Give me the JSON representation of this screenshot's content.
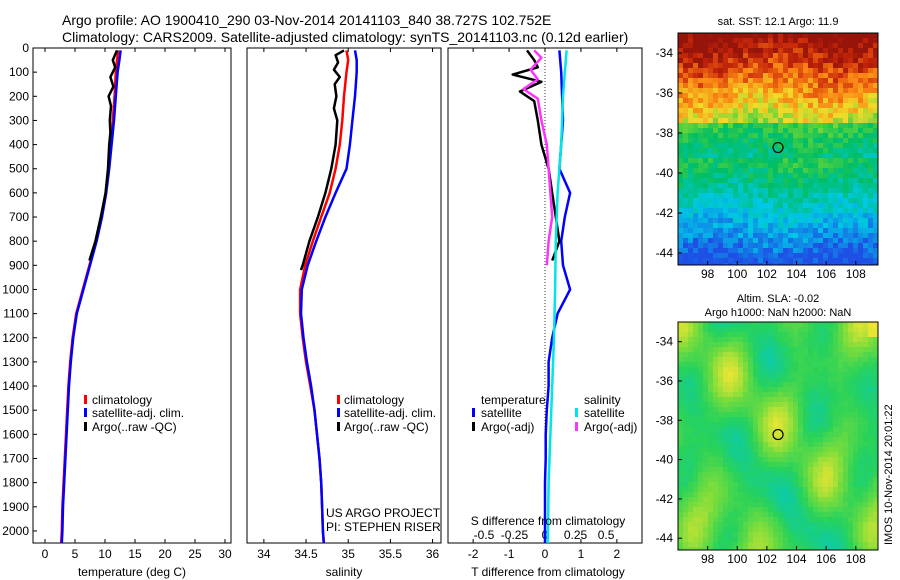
{
  "header": {
    "line1": "Argo profile: AO 1900410_290 03-Nov-2014 20141103_840 38.727S 102.752E",
    "line2": "Climatology: CARS2009. Satellite-adjusted climatology: synTS_20141103.nc (0.12d earlier)"
  },
  "colors": {
    "climatology": "#ff0000",
    "satellite": "#0000ff",
    "argo": "#000000",
    "salinity_satellite": "#00e5e5",
    "salinity_argo": "#ff33ff"
  },
  "chart_data": [
    {
      "type": "line",
      "panel": "temperature",
      "xlabel": "temperature (deg C)",
      "ylabel": "",
      "xlim": [
        -2,
        31
      ],
      "ylim": [
        2050,
        0
      ],
      "xticks": [
        0,
        5,
        10,
        15,
        20,
        25,
        30
      ],
      "yticks": [
        0,
        100,
        200,
        300,
        400,
        500,
        600,
        700,
        800,
        900,
        1000,
        1100,
        1200,
        1300,
        1400,
        1500,
        1600,
        1700,
        1800,
        1900,
        2000
      ],
      "legend": [
        "climatology",
        "satellite-adj. clim.",
        "Argo(..raw -QC)"
      ],
      "series": [
        {
          "name": "climatology",
          "color": "#ff0000",
          "values": [
            [
              12.2,
              10
            ],
            [
              12.0,
              50
            ],
            [
              11.8,
              100
            ],
            [
              11.6,
              200
            ],
            [
              11.3,
              300
            ],
            [
              11.0,
              400
            ],
            [
              10.6,
              500
            ],
            [
              10.1,
              600
            ],
            [
              9.4,
              700
            ],
            [
              8.5,
              800
            ],
            [
              7.4,
              900
            ],
            [
              6.3,
              1000
            ],
            [
              5.2,
              1100
            ],
            [
              4.6,
              1200
            ],
            [
              4.2,
              1300
            ],
            [
              3.9,
              1400
            ],
            [
              3.7,
              1500
            ],
            [
              3.5,
              1600
            ],
            [
              3.3,
              1700
            ],
            [
              3.1,
              1800
            ],
            [
              2.9,
              1900
            ],
            [
              2.8,
              2000
            ],
            [
              2.7,
              2050
            ]
          ]
        },
        {
          "name": "satellite-adj. clim.",
          "color": "#0000ff",
          "values": [
            [
              12.6,
              10
            ],
            [
              12.4,
              50
            ],
            [
              12.1,
              100
            ],
            [
              11.8,
              200
            ],
            [
              11.5,
              300
            ],
            [
              11.1,
              400
            ],
            [
              10.7,
              500
            ],
            [
              10.2,
              600
            ],
            [
              9.5,
              700
            ],
            [
              8.6,
              800
            ],
            [
              7.5,
              900
            ],
            [
              6.4,
              1000
            ],
            [
              5.3,
              1100
            ],
            [
              4.7,
              1200
            ],
            [
              4.3,
              1300
            ],
            [
              4.0,
              1400
            ],
            [
              3.8,
              1500
            ],
            [
              3.6,
              1600
            ],
            [
              3.4,
              1700
            ],
            [
              3.2,
              1800
            ],
            [
              3.0,
              1900
            ],
            [
              2.9,
              2000
            ],
            [
              2.8,
              2050
            ]
          ]
        },
        {
          "name": "Argo(..raw -QC)",
          "color": "#000000",
          "values": [
            [
              12.0,
              10
            ],
            [
              11.3,
              50
            ],
            [
              11.7,
              80
            ],
            [
              10.9,
              120
            ],
            [
              11.4,
              160
            ],
            [
              10.6,
              200
            ],
            [
              11.0,
              240
            ],
            [
              10.8,
              300
            ],
            [
              10.9,
              350
            ],
            [
              10.7,
              400
            ],
            [
              10.5,
              500
            ],
            [
              10.1,
              600
            ],
            [
              9.3,
              700
            ],
            [
              8.4,
              800
            ],
            [
              7.4,
              880
            ]
          ]
        }
      ]
    },
    {
      "type": "line",
      "panel": "salinity",
      "xlabel": "salinity",
      "xlim": [
        33.8,
        36.1
      ],
      "ylim": [
        2050,
        0
      ],
      "xticks": [
        34,
        34.5,
        35,
        35.5,
        36
      ],
      "tick_labels": [
        "34",
        "34.5",
        "35",
        "35.5",
        "36"
      ],
      "legend": [
        "climatology",
        "satellite-adj. clim.",
        "Argo(..raw -QC)"
      ],
      "annotations": [
        "US ARGO PROJECT",
        "PI: STEPHEN RISER"
      ],
      "series": [
        {
          "name": "climatology",
          "color": "#ff0000",
          "values": [
            [
              34.98,
              10
            ],
            [
              35.0,
              50
            ],
            [
              34.98,
              100
            ],
            [
              34.95,
              200
            ],
            [
              34.93,
              300
            ],
            [
              34.9,
              400
            ],
            [
              34.85,
              500
            ],
            [
              34.78,
              600
            ],
            [
              34.68,
              700
            ],
            [
              34.58,
              800
            ],
            [
              34.49,
              900
            ],
            [
              34.43,
              1000
            ],
            [
              34.43,
              1100
            ],
            [
              34.46,
              1200
            ],
            [
              34.5,
              1300
            ],
            [
              34.55,
              1400
            ],
            [
              34.6,
              1500
            ],
            [
              34.63,
              1600
            ],
            [
              34.66,
              1700
            ],
            [
              34.68,
              1800
            ],
            [
              34.69,
              1900
            ],
            [
              34.7,
              2000
            ],
            [
              34.71,
              2050
            ]
          ]
        },
        {
          "name": "satellite-adj. clim.",
          "color": "#0000ff",
          "values": [
            [
              35.08,
              10
            ],
            [
              35.1,
              50
            ],
            [
              35.1,
              100
            ],
            [
              35.08,
              200
            ],
            [
              35.05,
              300
            ],
            [
              35.02,
              400
            ],
            [
              34.98,
              500
            ],
            [
              34.85,
              600
            ],
            [
              34.73,
              700
            ],
            [
              34.62,
              800
            ],
            [
              34.52,
              900
            ],
            [
              34.45,
              1000
            ],
            [
              34.44,
              1100
            ],
            [
              34.47,
              1200
            ],
            [
              34.51,
              1300
            ],
            [
              34.56,
              1400
            ],
            [
              34.6,
              1500
            ],
            [
              34.63,
              1600
            ],
            [
              34.66,
              1700
            ],
            [
              34.68,
              1800
            ],
            [
              34.69,
              1900
            ],
            [
              34.7,
              2000
            ],
            [
              34.71,
              2050
            ]
          ]
        },
        {
          "name": "Argo(..raw -QC)",
          "color": "#000000",
          "values": [
            [
              34.95,
              10
            ],
            [
              34.85,
              30
            ],
            [
              34.88,
              60
            ],
            [
              34.83,
              90
            ],
            [
              34.9,
              120
            ],
            [
              34.84,
              150
            ],
            [
              34.86,
              200
            ],
            [
              34.83,
              250
            ],
            [
              34.87,
              300
            ],
            [
              34.85,
              400
            ],
            [
              34.8,
              500
            ],
            [
              34.73,
              600
            ],
            [
              34.64,
              700
            ],
            [
              34.54,
              800
            ],
            [
              34.46,
              900
            ],
            [
              34.44,
              920
            ]
          ]
        }
      ]
    },
    {
      "type": "line",
      "panel": "difference",
      "xlabel": "T difference from climatology",
      "top_label": "S difference from climatology",
      "xlim": [
        -2.7,
        2.7
      ],
      "ylim": [
        2050,
        0
      ],
      "xticks_T": [
        -2,
        -1,
        0,
        1,
        2
      ],
      "xticks_S": [
        "-0.5",
        "-0.25",
        "0",
        "0.25",
        "0.5"
      ],
      "xticks_S_pos": [
        -1.7,
        -0.85,
        0,
        0.85,
        1.7
      ],
      "legend": {
        "temperature_title": "temperature",
        "salinity_title": "salinity",
        "t_sat": "satellite",
        "t_argo": "Argo(-adj)",
        "s_sat": "satellite",
        "s_argo": "Argo(-adj)"
      },
      "series": [
        {
          "name": "satellite",
          "color": "#0000ff",
          "values": [
            [
              0.4,
              10
            ],
            [
              0.45,
              100
            ],
            [
              0.5,
              300
            ],
            [
              0.4,
              500
            ],
            [
              0.7,
              600
            ],
            [
              0.55,
              700
            ],
            [
              0.45,
              800
            ],
            [
              0.5,
              900
            ],
            [
              0.7,
              1000
            ],
            [
              0.35,
              1100
            ],
            [
              0.2,
              1200
            ],
            [
              0.1,
              1300
            ],
            [
              0.1,
              1400
            ],
            [
              0.05,
              1500
            ],
            [
              0.02,
              1600
            ],
            [
              0.02,
              1700
            ],
            [
              0.0,
              1800
            ],
            [
              0.0,
              2050
            ]
          ]
        },
        {
          "name": "Argo(-adj)",
          "color": "#000000",
          "values": [
            [
              -0.5,
              10
            ],
            [
              -0.3,
              50
            ],
            [
              -0.2,
              80
            ],
            [
              -0.9,
              110
            ],
            [
              -0.1,
              140
            ],
            [
              -0.7,
              180
            ],
            [
              -0.3,
              220
            ],
            [
              -0.2,
              300
            ],
            [
              -0.1,
              400
            ],
            [
              0.1,
              500
            ],
            [
              0.2,
              600
            ],
            [
              0.3,
              700
            ],
            [
              0.4,
              800
            ],
            [
              0.2,
              880
            ]
          ]
        },
        {
          "name": "satellite",
          "color": "#00e5e5",
          "values": [
            [
              0.6,
              10
            ],
            [
              0.55,
              100
            ],
            [
              0.5,
              200
            ],
            [
              0.45,
              400
            ],
            [
              0.35,
              600
            ],
            [
              0.3,
              800
            ],
            [
              0.28,
              1000
            ],
            [
              0.25,
              1200
            ],
            [
              0.2,
              1400
            ],
            [
              0.15,
              1600
            ],
            [
              0.1,
              1800
            ],
            [
              0.08,
              2050
            ]
          ]
        },
        {
          "name": "Argo(-adj)",
          "color": "#ff33ff",
          "values": [
            [
              -0.3,
              10
            ],
            [
              -0.1,
              40
            ],
            [
              -0.4,
              90
            ],
            [
              -0.2,
              130
            ],
            [
              -0.6,
              170
            ],
            [
              -0.2,
              210
            ],
            [
              -0.1,
              300
            ],
            [
              0.05,
              400
            ],
            [
              0.1,
              500
            ],
            [
              0.15,
              600
            ],
            [
              0.2,
              700
            ],
            [
              0.1,
              800
            ],
            [
              0.05,
              900
            ]
          ]
        }
      ]
    },
    {
      "type": "heatmap",
      "panel": "sst_map",
      "title": "sat. SST: 12.1  Argo: 11.9",
      "xticks": [
        98,
        100,
        102,
        104,
        106,
        108
      ],
      "yticks": [
        -34,
        -36,
        -38,
        -40,
        -42,
        -44
      ],
      "xlim": [
        96,
        109.5
      ],
      "ylim": [
        -44.6,
        -33
      ],
      "marker": {
        "lon": 102.752,
        "lat": -38.727
      }
    },
    {
      "type": "heatmap",
      "panel": "sla_map",
      "title_line1": "Altim. SLA: -0.02",
      "title_line2": "Argo h1000: NaN h2000: NaN",
      "xticks": [
        98,
        100,
        102,
        104,
        106,
        108
      ],
      "yticks": [
        -34,
        -36,
        -38,
        -40,
        -42,
        -44
      ],
      "xlim": [
        96,
        109.5
      ],
      "ylim": [
        -44.6,
        -33
      ],
      "marker": {
        "lon": 102.752,
        "lat": -38.727
      }
    }
  ],
  "side_text": "IMOS 10-Nov-2014 20:01:22"
}
